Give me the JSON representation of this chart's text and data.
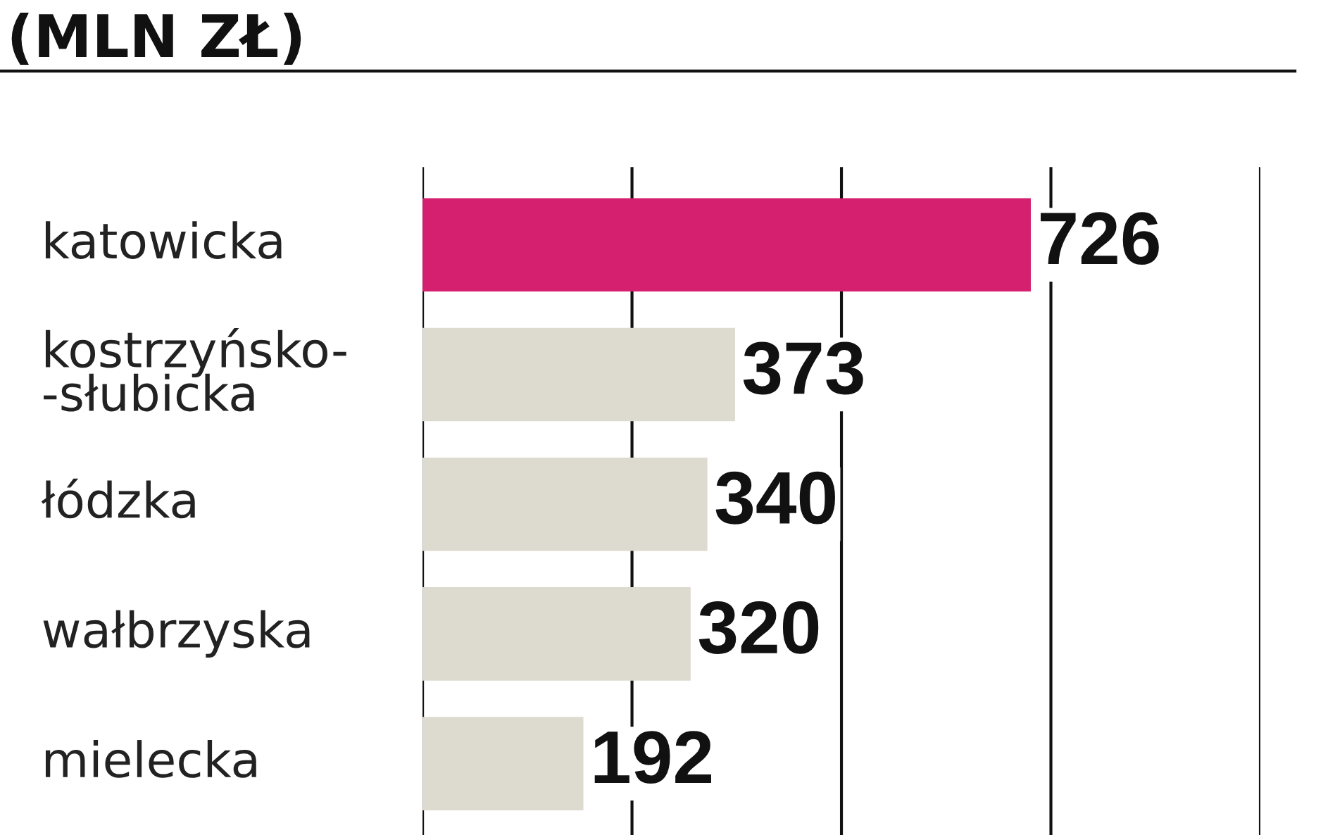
{
  "chart_data": {
    "type": "bar",
    "orientation": "horizontal",
    "title": "(MLN ZŁ)",
    "categories": [
      "katowicka",
      "kostrzyńsko-\n-słubicka",
      "łódzka",
      "wałbrzyska",
      "mielecka"
    ],
    "values": [
      726,
      373,
      340,
      320,
      192
    ],
    "colors": [
      "#d4206e",
      "#dddad0",
      "#dddad0",
      "#dddad0",
      "#dddad0"
    ],
    "xlim": [
      0,
      1000
    ],
    "xticks": [
      {
        "value": 0,
        "label": null
      },
      {
        "value": 250,
        "label": null
      },
      {
        "value": 500,
        "label": null
      },
      {
        "value": 750,
        "label": null
      },
      {
        "value": 1000,
        "label": null
      }
    ],
    "grid": "x",
    "tick_labels": "y",
    "data_labels": true
  }
}
